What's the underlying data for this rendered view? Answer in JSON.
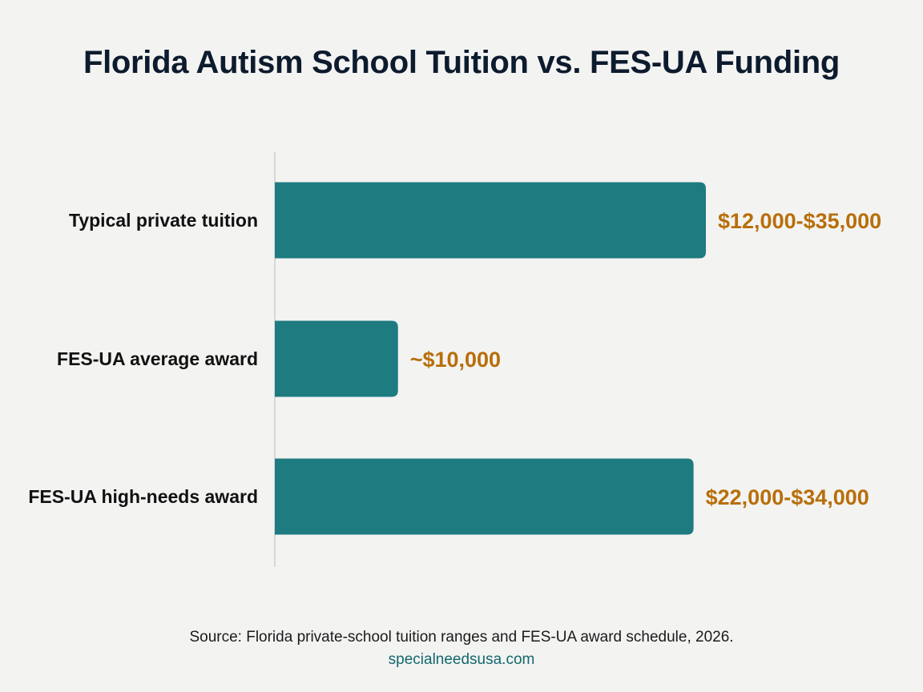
{
  "title": "Florida Autism School Tuition vs. FES-UA Funding",
  "footer": {
    "source": "Source: Florida private-school tuition ranges and FES-UA award schedule, 2026.",
    "site": "specialneedsusa.com"
  },
  "colors": {
    "bar": "#1e7b80",
    "value_label": "#b86e09",
    "axis": "#cfcfcf"
  },
  "chart_data": {
    "type": "bar",
    "orientation": "horizontal",
    "title": "Florida Autism School Tuition vs. FES-UA Funding",
    "xlabel": "",
    "ylabel": "",
    "xlim": [
      0,
      35000
    ],
    "grid": false,
    "categories": [
      "Typical private tuition",
      "FES-UA average award",
      "FES-UA high-needs award"
    ],
    "values": [
      35000,
      10000,
      34000
    ],
    "value_labels": [
      "$12,000-$35,000",
      "~$10,000",
      "$22,000-$34,000"
    ]
  }
}
